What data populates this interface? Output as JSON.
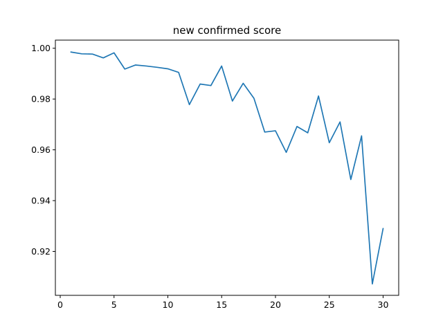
{
  "chart_data": {
    "type": "line",
    "title": "new confirmed score",
    "xlabel": "",
    "ylabel": "",
    "xlim": [
      -0.45,
      31.45
    ],
    "ylim": [
      0.9027,
      1.0032
    ],
    "xticks": [
      0,
      5,
      10,
      15,
      20,
      25,
      30
    ],
    "xtick_labels": [
      "0",
      "5",
      "10",
      "15",
      "20",
      "25",
      "30"
    ],
    "yticks": [
      0.92,
      0.94,
      0.96,
      0.98,
      1.0
    ],
    "ytick_labels": [
      "0.92",
      "0.94",
      "0.96",
      "0.98",
      "1.00"
    ],
    "grid": false,
    "legend": "none",
    "series": [
      {
        "color": "#1f77b4",
        "x": [
          1,
          2,
          3,
          4,
          5,
          6,
          7,
          8,
          9,
          10,
          11,
          12,
          13,
          14,
          15,
          16,
          17,
          18,
          19,
          20,
          21,
          22,
          23,
          24,
          25,
          26,
          27,
          28,
          29,
          30
        ],
        "y": [
          0.9985,
          0.9978,
          0.9977,
          0.9962,
          0.9982,
          0.9918,
          0.9934,
          0.993,
          0.9925,
          0.9919,
          0.9905,
          0.9778,
          0.9859,
          0.9853,
          0.993,
          0.9792,
          0.9862,
          0.9803,
          0.967,
          0.9675,
          0.959,
          0.9692,
          0.9667,
          0.9812,
          0.9628,
          0.971,
          0.9483,
          0.9655,
          0.9072,
          0.929
        ]
      }
    ]
  }
}
